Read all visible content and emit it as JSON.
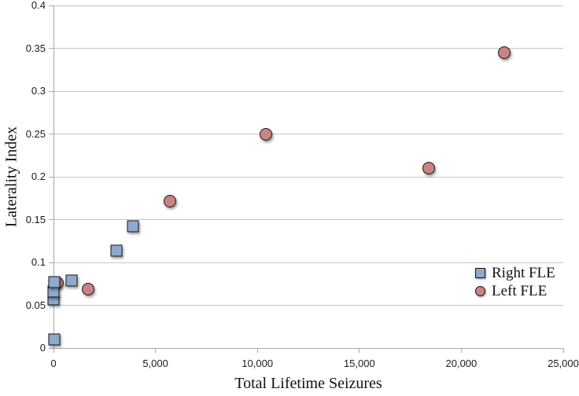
{
  "chart_data": {
    "type": "scatter",
    "title": "",
    "xlabel": "Total Lifetime Seizures",
    "ylabel": "Laterality Index",
    "xlim": [
      0,
      25000
    ],
    "ylim": [
      0,
      0.4
    ],
    "x_ticks": [
      0,
      5000,
      10000,
      15000,
      20000,
      25000
    ],
    "x_tick_labels": [
      "0",
      "5,000",
      "10,000",
      "15,000",
      "20,000",
      "25,000"
    ],
    "y_ticks": [
      0,
      0.05,
      0.1,
      0.15,
      0.2,
      0.25,
      0.3,
      0.35,
      0.4
    ],
    "y_tick_labels": [
      "0",
      "0.05",
      "0.1",
      "0.15",
      "0.2",
      "0.25",
      "0.3",
      "0.35",
      "0.4"
    ],
    "grid": "horizontal",
    "legend_position": "inside-bottom-right",
    "colors": {
      "right_fle_fill": "#8FA9CB",
      "left_fle_fill": "#CB8282",
      "marker_stroke": "#161616",
      "gridline": "#c6c6c6",
      "axis": "#a8a8a8",
      "text": "#111111"
    },
    "series": [
      {
        "name": "Right FLE",
        "marker": "square",
        "fill": "#8FA9CB",
        "stroke": "#161616",
        "points": [
          {
            "x": 50,
            "y": 0.01
          },
          {
            "x": 0,
            "y": 0.057
          },
          {
            "x": 0,
            "y": 0.066
          },
          {
            "x": 50,
            "y": 0.077
          },
          {
            "x": 900,
            "y": 0.079
          },
          {
            "x": 3100,
            "y": 0.114
          },
          {
            "x": 3900,
            "y": 0.142
          }
        ]
      },
      {
        "name": "Left FLE",
        "marker": "circle",
        "fill": "#CB8282",
        "stroke": "#161616",
        "points": [
          {
            "x": 200,
            "y": 0.076
          },
          {
            "x": 1700,
            "y": 0.069
          },
          {
            "x": 5700,
            "y": 0.172
          },
          {
            "x": 10400,
            "y": 0.25
          },
          {
            "x": 18400,
            "y": 0.21
          },
          {
            "x": 22100,
            "y": 0.345
          }
        ]
      }
    ]
  }
}
